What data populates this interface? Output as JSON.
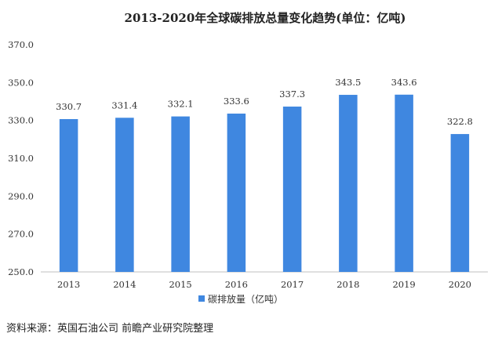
{
  "chart_data": {
    "type": "bar",
    "title": "2013-2020年全球碳排放总量变化趋势(单位：亿吨)",
    "categories": [
      "2013",
      "2014",
      "2015",
      "2016",
      "2017",
      "2018",
      "2019",
      "2020"
    ],
    "series": [
      {
        "name": "碳排放量（亿吨）",
        "values": [
          330.7,
          331.4,
          332.1,
          333.6,
          337.3,
          343.5,
          343.6,
          322.8
        ]
      }
    ],
    "value_labels": [
      "330.7",
      "331.4",
      "332.1",
      "333.6",
      "337.3",
      "343.5",
      "343.6",
      "322.8"
    ],
    "ylim": [
      250,
      370
    ],
    "yticks": [
      "250.0",
      "270.0",
      "290.0",
      "310.0",
      "330.0",
      "350.0",
      "370.0"
    ],
    "ytick_values": [
      250,
      270,
      290,
      310,
      330,
      350,
      370
    ],
    "bar_color": "#3f87e0",
    "grid": false,
    "legend_position": "bottom"
  },
  "source": "资料来源：英国石油公司 前瞻产业研究院整理"
}
